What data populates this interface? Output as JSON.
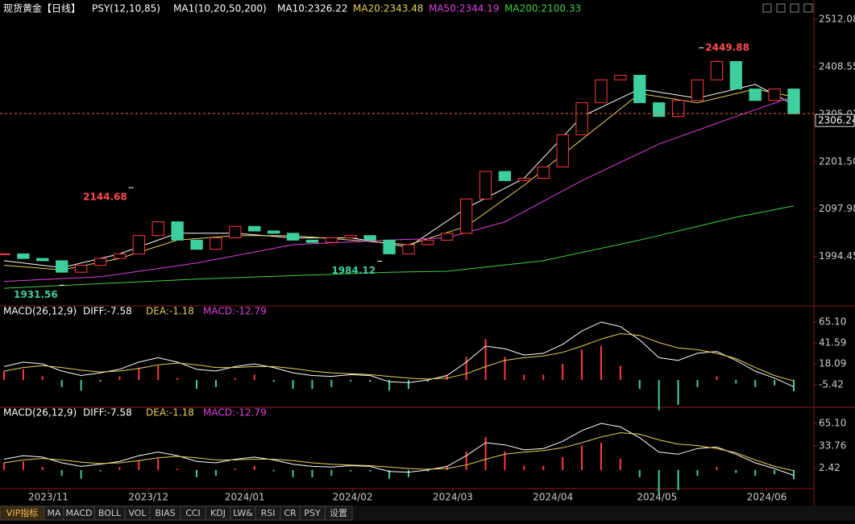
{
  "header": {
    "title": "现货黄金【日线】",
    "items": [
      {
        "text": "PSY(12,10,85)",
        "color": "#ffffff"
      },
      {
        "text": "MA1(10,20,50,200)",
        "color": "#ffffff"
      },
      {
        "text": "MA10:2326.22",
        "color": "#ffffff"
      },
      {
        "text": "MA20:2343.48",
        "color": "#e8d05a"
      },
      {
        "text": "MA50:2344.19",
        "color": "#e040e0"
      },
      {
        "text": "MA200:2100.33",
        "color": "#40d040"
      }
    ]
  },
  "chart_data": [
    {
      "type": "candlestick",
      "xlim": [
        0,
        41
      ],
      "ylim": [
        1890,
        2528
      ],
      "yticks": [
        {
          "value": 1994.45,
          "label": "1994.45"
        },
        {
          "value": 2097.98,
          "label": "2097.98"
        },
        {
          "value": 2201.5,
          "label": "2201.50"
        },
        {
          "value": 2305.02,
          "label": "2305.02"
        },
        {
          "value": 2408.55,
          "label": "2408.55"
        },
        {
          "value": 2512.08,
          "label": "2512.08"
        }
      ],
      "xticks": [
        {
          "value": 2.3,
          "label": "2023/11"
        },
        {
          "value": 7.5,
          "label": "2023/12"
        },
        {
          "value": 12.5,
          "label": "2024/01"
        },
        {
          "value": 18.1,
          "label": "2024/02"
        },
        {
          "value": 23.3,
          "label": "2024/03"
        },
        {
          "value": 28.5,
          "label": "2024/04"
        },
        {
          "value": 33.9,
          "label": "2024/05"
        },
        {
          "value": 39.6,
          "label": "2024/06"
        }
      ],
      "up_color": "#ff3b3b",
      "down_color": "#3ecfa0",
      "values": [
        2000,
        1990,
        1985,
        1960,
        1975,
        1990,
        2000,
        2040,
        2070,
        2030,
        2010,
        2035,
        2060,
        2050,
        2045,
        2030,
        2025,
        2035,
        2040,
        2030,
        2000,
        2020,
        2030,
        2045,
        2120,
        2180,
        2160,
        2165,
        2190,
        2260,
        2330,
        2380,
        2390,
        2330,
        2300,
        2335,
        2380,
        2420,
        2360,
        2335,
        2360,
        2306
      ],
      "lines": [
        {
          "color": "#ffffff",
          "x": [
            0,
            3,
            6,
            9,
            12,
            15,
            18,
            21,
            24,
            27,
            30,
            33,
            36,
            39,
            41
          ],
          "values": [
            1985,
            1970,
            2000,
            2045,
            2045,
            2035,
            2035,
            2015,
            2100,
            2165,
            2300,
            2360,
            2340,
            2370,
            2326
          ]
        },
        {
          "color": "#e8d05a",
          "x": [
            0,
            3,
            6,
            9,
            12,
            15,
            18,
            21,
            24,
            27,
            30,
            33,
            36,
            39,
            41
          ],
          "values": [
            1975,
            1965,
            1990,
            2030,
            2040,
            2040,
            2030,
            2020,
            2060,
            2150,
            2250,
            2350,
            2330,
            2360,
            2343
          ]
        },
        {
          "color": "#e040e0",
          "x": [
            0,
            5,
            10,
            15,
            20,
            23,
            26,
            30,
            34,
            38,
            41
          ],
          "values": [
            1940,
            1950,
            1980,
            2020,
            2030,
            2035,
            2070,
            2160,
            2240,
            2300,
            2344
          ]
        },
        {
          "color": "#40d040",
          "x": [
            0,
            10,
            20,
            23,
            28,
            33,
            38,
            41
          ],
          "values": [
            1925,
            1945,
            1960,
            1962,
            1985,
            2030,
            2080,
            2105
          ]
        }
      ],
      "extremes": [
        {
          "x": 36.2,
          "value": 2449.88,
          "color": "#ff4d4d"
        },
        {
          "x": 6.6,
          "value": 2144.68,
          "color": "#ff4d4d"
        },
        {
          "x": 3,
          "value": 1931.56,
          "color": "#3ecfa0"
        },
        {
          "x": 19.5,
          "value": 1984.12,
          "color": "#3ecfa0"
        }
      ],
      "last": 2306.24
    },
    {
      "type": "macd",
      "xlim": [
        0,
        41
      ],
      "ylim": [
        -29.8,
        81.4
      ],
      "yticks": [
        -5.42,
        18.09,
        41.59,
        {
          "value": 65.1,
          "label": "65.10"
        }
      ],
      "legend": [
        {
          "text": "MACD(26,12,9)",
          "color": "#ffffff"
        },
        {
          "text": "DIFF:-7.58",
          "color": "#ffffff"
        },
        {
          "text": "DEA:-1.18",
          "color": "#e8d05a"
        },
        {
          "text": "MACD:-12.79",
          "color": "#e040e0"
        }
      ],
      "lines": [
        {
          "color": "#ffffff",
          "values": [
            15,
            20,
            18,
            10,
            5,
            8,
            12,
            20,
            25,
            20,
            12,
            10,
            15,
            18,
            14,
            8,
            5,
            4,
            6,
            5,
            -2,
            -3,
            0,
            5,
            20,
            38,
            35,
            28,
            30,
            40,
            55,
            65,
            60,
            45,
            25,
            22,
            30,
            32,
            22,
            10,
            2,
            -7.58
          ]
        },
        {
          "color": "#e8d05a",
          "values": [
            10,
            14,
            16,
            14,
            11,
            9,
            10,
            13,
            17,
            19,
            17,
            14,
            14,
            15,
            15,
            13,
            10,
            8,
            7,
            6,
            4,
            2,
            1,
            2,
            7,
            15,
            22,
            25,
            27,
            31,
            38,
            46,
            52,
            50,
            42,
            36,
            34,
            30,
            24,
            14,
            5,
            -1.18
          ]
        }
      ],
      "bars": {
        "up_color": "#ff3b3b",
        "down_color": "#3ecfa0",
        "values": [
          10,
          12,
          4,
          -8,
          -12,
          -2,
          4,
          14,
          16,
          2,
          -10,
          -8,
          2,
          6,
          -2,
          -10,
          -10,
          -8,
          -2,
          -2,
          -12,
          -10,
          -2,
          6,
          26,
          46,
          26,
          6,
          6,
          18,
          34,
          38,
          16,
          -10,
          -34,
          -28,
          -8,
          4,
          -4,
          -8,
          -6,
          -12.79
        ]
      }
    },
    {
      "type": "macd",
      "xlim": [
        0,
        41
      ],
      "ylim": [
        -23.7,
        85.2
      ],
      "yticks": [
        2.42,
        33.76,
        {
          "value": 65.1,
          "label": "65.10"
        }
      ],
      "legend": [
        {
          "text": "MACD(26,12,9)",
          "color": "#ffffff"
        },
        {
          "text": "DIFF:-7.58",
          "color": "#ffffff"
        },
        {
          "text": "DEA:-1.18",
          "color": "#e8d05a"
        },
        {
          "text": "MACD:-12.79",
          "color": "#e040e0"
        }
      ],
      "lines": [
        {
          "color": "#ffffff",
          "values": [
            15,
            20,
            18,
            10,
            5,
            8,
            12,
            20,
            25,
            20,
            12,
            10,
            15,
            18,
            14,
            8,
            5,
            4,
            6,
            5,
            -2,
            -3,
            0,
            5,
            20,
            38,
            35,
            28,
            30,
            40,
            55,
            65,
            60,
            45,
            25,
            22,
            30,
            32,
            22,
            10,
            2,
            -7.58
          ]
        },
        {
          "color": "#e8d05a",
          "values": [
            10,
            14,
            16,
            14,
            11,
            9,
            10,
            13,
            17,
            19,
            17,
            14,
            14,
            15,
            15,
            13,
            10,
            8,
            7,
            6,
            4,
            2,
            1,
            2,
            7,
            15,
            22,
            25,
            27,
            31,
            38,
            46,
            52,
            50,
            42,
            36,
            34,
            30,
            24,
            14,
            5,
            -1.18
          ]
        }
      ],
      "bars": {
        "up_color": "#ff3b3b",
        "down_color": "#3ecfa0",
        "values": [
          10,
          12,
          4,
          -8,
          -12,
          -2,
          4,
          14,
          16,
          2,
          -10,
          -8,
          2,
          6,
          -2,
          -10,
          -10,
          -8,
          -2,
          -2,
          -12,
          -10,
          -2,
          6,
          26,
          46,
          26,
          6,
          6,
          18,
          34,
          38,
          16,
          -10,
          -34,
          -28,
          -8,
          4,
          -4,
          -8,
          -6,
          -12.79
        ]
      }
    }
  ],
  "tabs": [
    "VIP指标",
    "MA",
    "MACD",
    "BOLL",
    "VOL",
    "BIAS",
    "CCI",
    "KDJ",
    "LW&",
    "RSI",
    "CR",
    "PSY",
    "设置"
  ]
}
